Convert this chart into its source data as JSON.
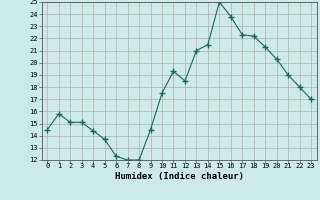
{
  "x": [
    0,
    1,
    2,
    3,
    4,
    5,
    6,
    7,
    8,
    9,
    10,
    11,
    12,
    13,
    14,
    15,
    16,
    17,
    18,
    19,
    20,
    21,
    22,
    23
  ],
  "y": [
    14.5,
    15.8,
    15.1,
    15.1,
    14.4,
    13.7,
    12.3,
    12.0,
    12.0,
    14.5,
    17.5,
    19.3,
    18.5,
    21.0,
    21.5,
    25.0,
    23.8,
    22.3,
    22.2,
    21.3,
    20.3,
    19.0,
    18.0,
    17.0
  ],
  "line_color": "#1a6b5a",
  "marker": "+",
  "marker_size": 4,
  "bg_color": "#cceaea",
  "grid_color": "#b8a8a8",
  "xlabel": "Humidex (Indice chaleur)",
  "ylim": [
    12,
    25
  ],
  "xlim": [
    -0.5,
    23.5
  ],
  "yticks": [
    12,
    13,
    14,
    15,
    16,
    17,
    18,
    19,
    20,
    21,
    22,
    23,
    24,
    25
  ],
  "xticks": [
    0,
    1,
    2,
    3,
    4,
    5,
    6,
    7,
    8,
    9,
    10,
    11,
    12,
    13,
    14,
    15,
    16,
    17,
    18,
    19,
    20,
    21,
    22,
    23
  ],
  "tick_fontsize": 5.0,
  "xlabel_fontsize": 6.5
}
